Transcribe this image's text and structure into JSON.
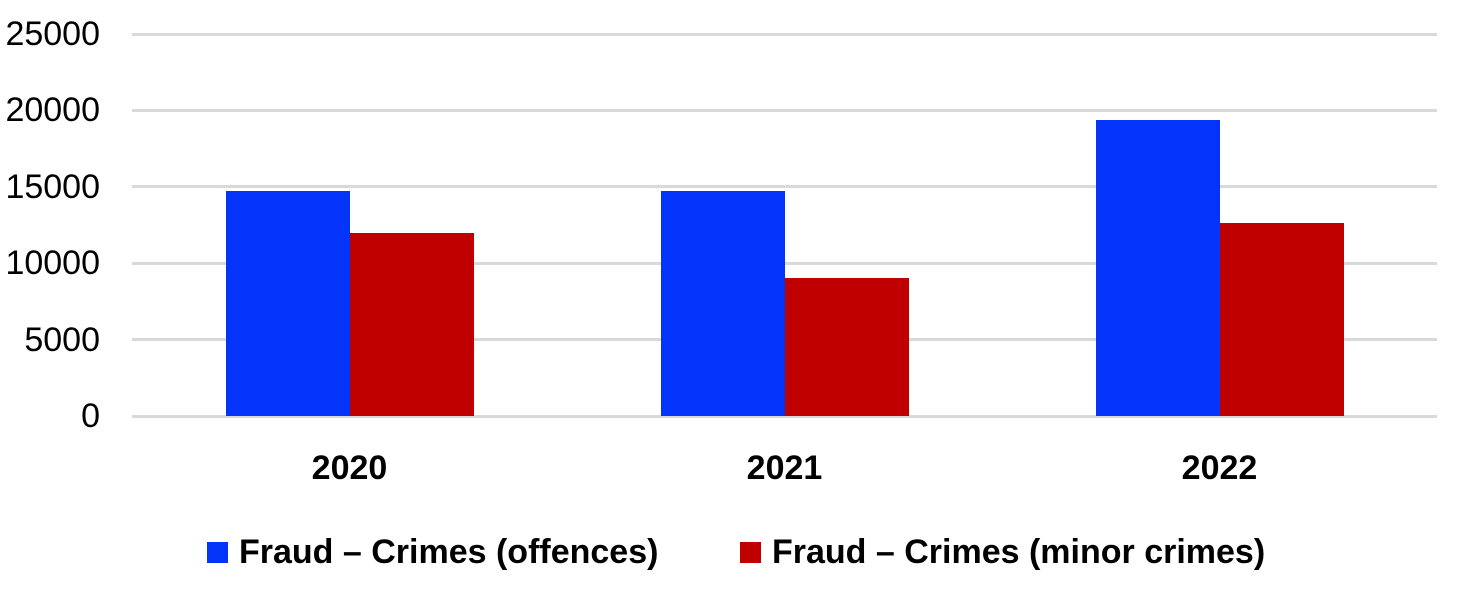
{
  "chart_data": {
    "type": "bar",
    "categories": [
      "2020",
      "2021",
      "2022"
    ],
    "series": [
      {
        "name": "Fraud – Crimes (offences)",
        "color": "#0433FA",
        "values": [
          14700,
          14700,
          19400
        ]
      },
      {
        "name": "Fraud – Crimes (minor crimes)",
        "color": "#C00000",
        "values": [
          12000,
          9000,
          12650
        ]
      }
    ],
    "ylim": [
      0,
      25000
    ],
    "ytick_step": 5000,
    "yticklabels": [
      "0",
      "5000",
      "10000",
      "15000",
      "20000",
      "25000"
    ],
    "grid": "horizontal",
    "gridline_color": "#D9D9D9",
    "background": "#FFFFFF",
    "text_color": "#000000",
    "legend_position": "bottom"
  }
}
